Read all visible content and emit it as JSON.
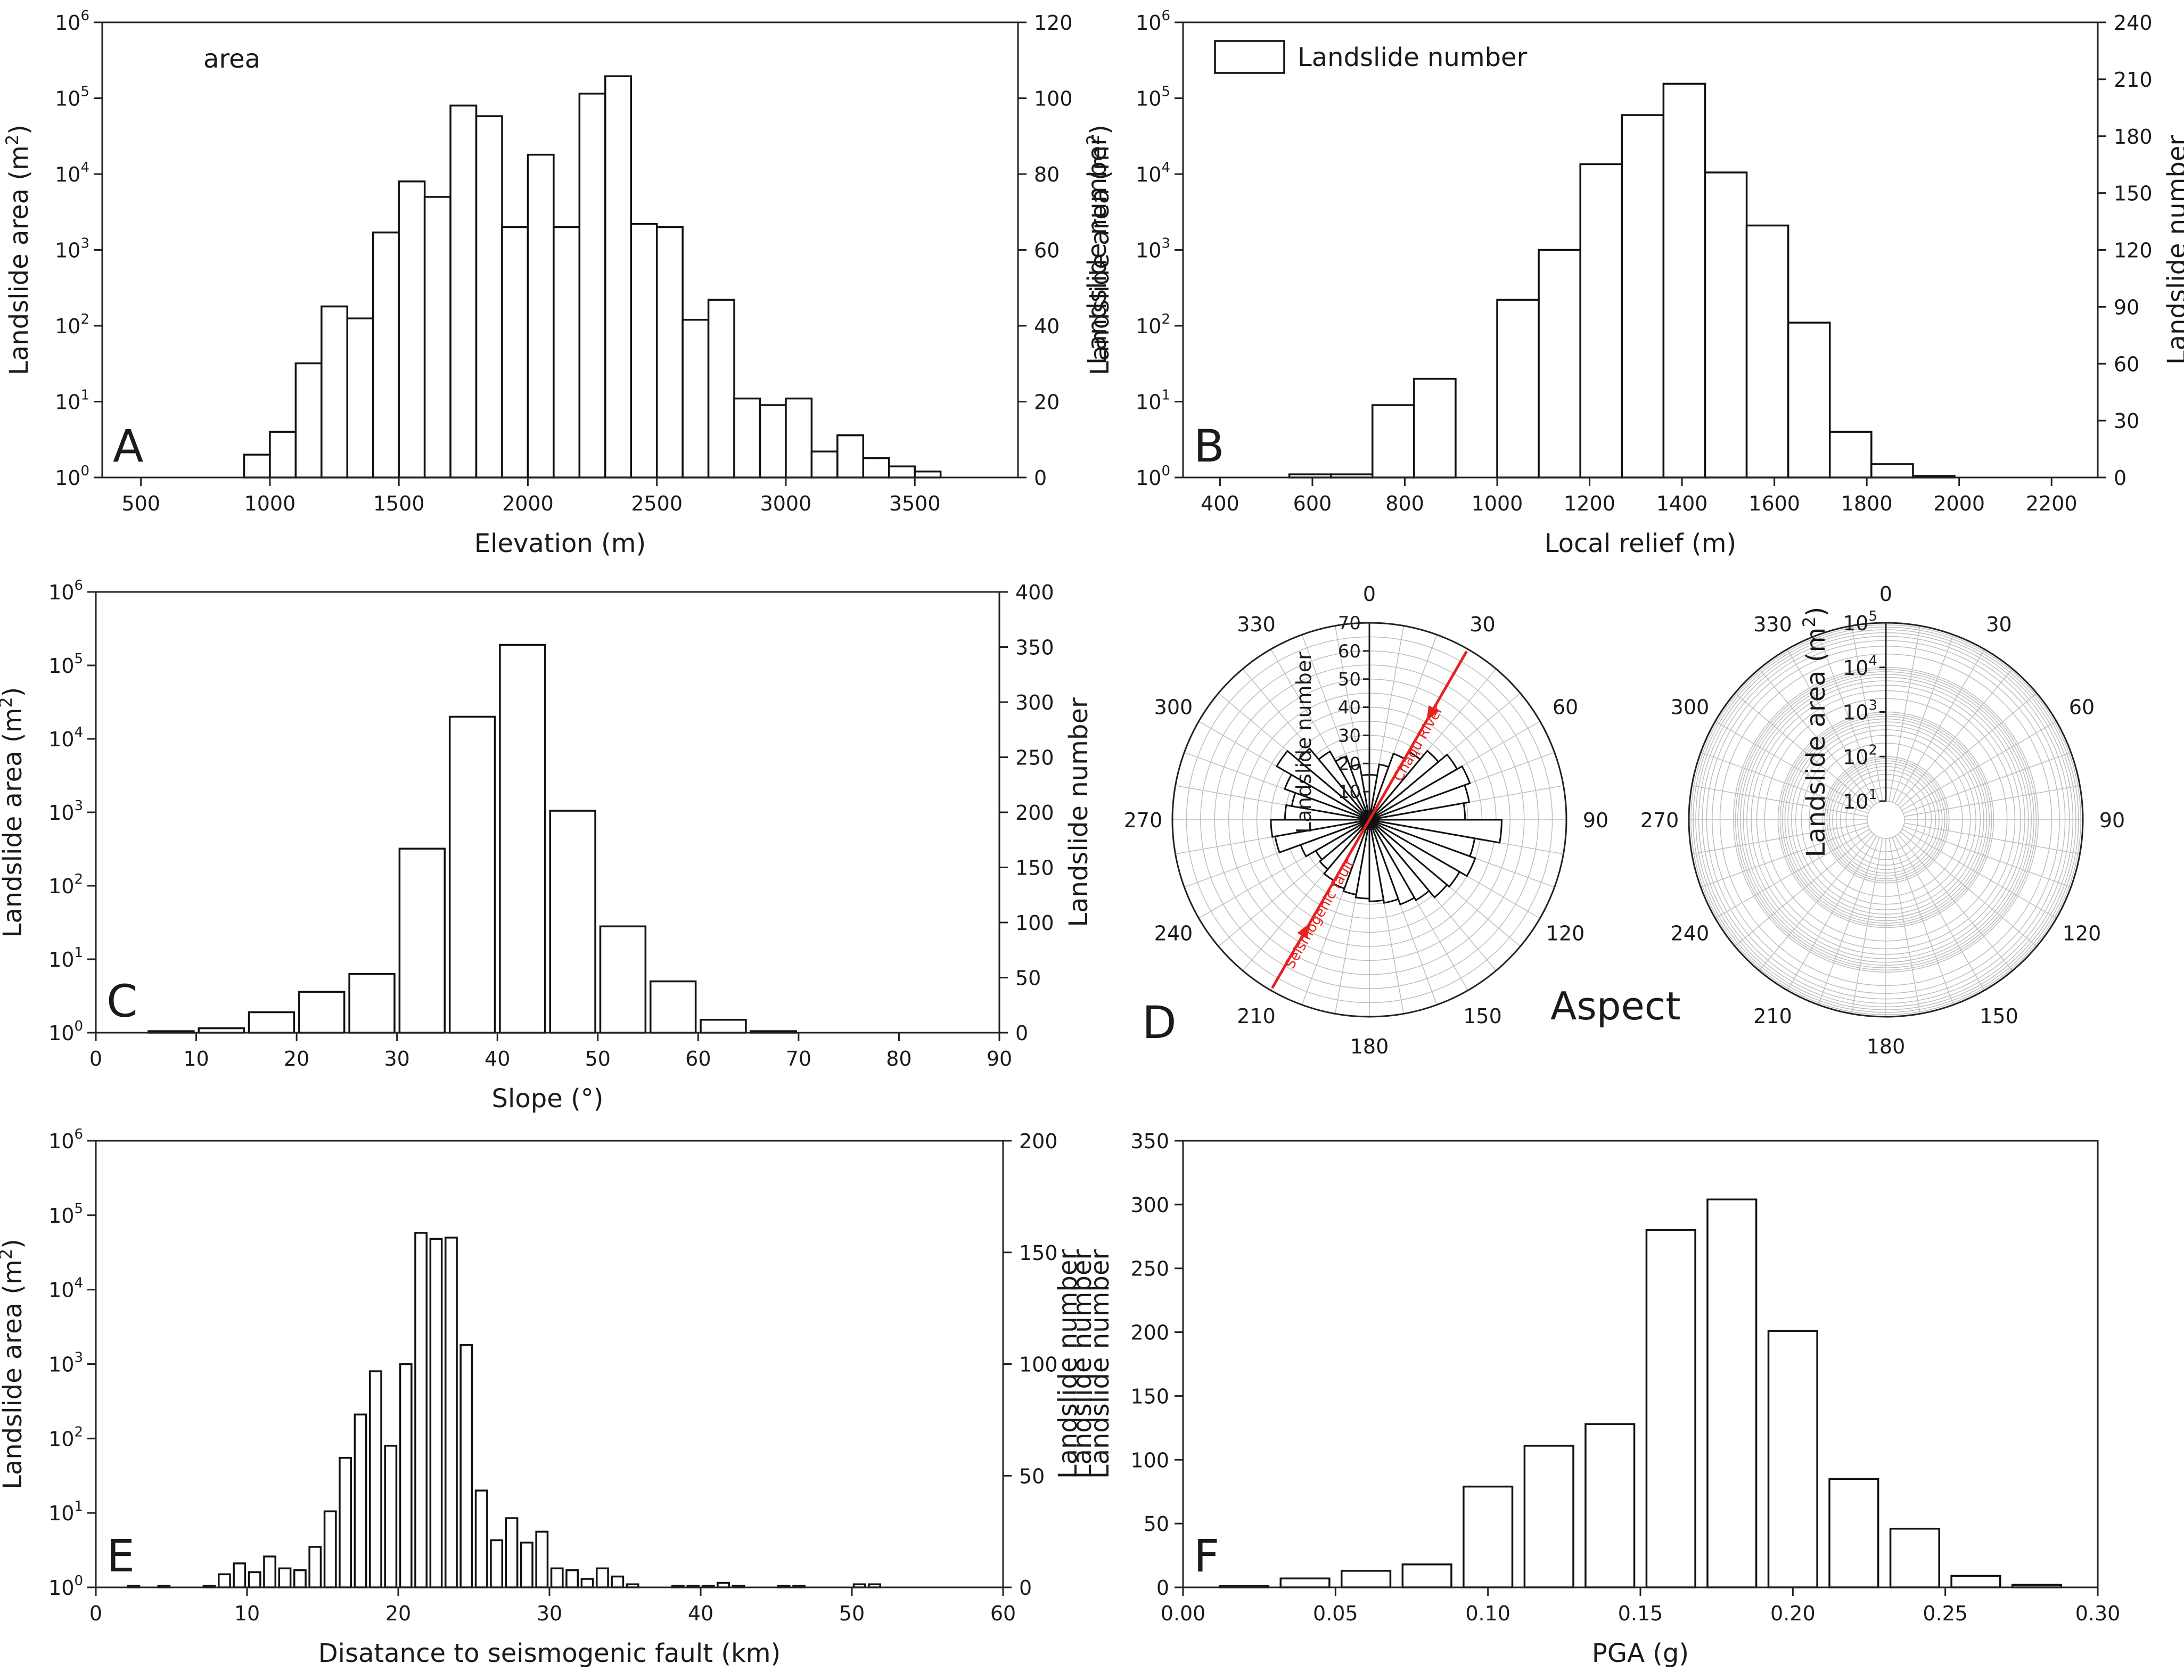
{
  "figure": {
    "title": ""
  },
  "chart_data": [
    {
      "id": "A",
      "type": "bar",
      "panel_letter": "A",
      "inside_label": "area",
      "xlabel": "Elevation (m)",
      "ylabel_left": "Landslide area (m²)",
      "ylabel_right": "Landslide number",
      "xlim": [
        350,
        3900
      ],
      "x_ticks": [
        500,
        1000,
        1500,
        2000,
        2500,
        3000,
        3500
      ],
      "y_left_log_exponents": [
        0,
        1,
        2,
        3,
        4,
        5,
        6
      ],
      "ylim_right": [
        0,
        120
      ],
      "y_right_ticks": [
        0,
        20,
        40,
        60,
        80,
        100,
        120
      ],
      "bin_width": 100,
      "bin_centers": [
        950,
        1050,
        1150,
        1250,
        1350,
        1450,
        1550,
        1650,
        1750,
        1850,
        1950,
        2050,
        2150,
        2250,
        2350,
        2450,
        2550,
        2650,
        2750,
        2850,
        2950,
        3050,
        3150,
        3250,
        3350,
        3450,
        3550
      ],
      "values": [
        2,
        4,
        32,
        180,
        125,
        1700,
        8000,
        5000,
        80000,
        58000,
        2000,
        18000,
        2000,
        115000,
        195000,
        2200,
        2000,
        120,
        220,
        11,
        9,
        11,
        2.2,
        3.6,
        1.8,
        1.4,
        1.2
      ]
    },
    {
      "id": "B",
      "type": "bar",
      "panel_letter": "B",
      "legend": "Landslide number",
      "xlabel": "Local relief (m)",
      "ylabel_left": "Landslide area (m²)",
      "ylabel_right": "Landslide number",
      "xlim": [
        320,
        2300
      ],
      "x_ticks": [
        400,
        600,
        800,
        1000,
        1200,
        1400,
        1600,
        1800,
        2000,
        2200
      ],
      "y_left_log_exponents": [
        0,
        1,
        2,
        3,
        4,
        5,
        6
      ],
      "ylim_right": [
        0,
        240
      ],
      "y_right_ticks": [
        0,
        30,
        60,
        90,
        120,
        150,
        180,
        210,
        240
      ],
      "bin_width": 90,
      "bin_centers": [
        595,
        685,
        775,
        865,
        1045,
        1135,
        1225,
        1315,
        1405,
        1495,
        1585,
        1675,
        1765,
        1855,
        1945
      ],
      "values": [
        1.1,
        1.1,
        9,
        20,
        220,
        1000,
        13500,
        60000,
        155000,
        10500,
        2100,
        110,
        4,
        1.5,
        1.05
      ]
    },
    {
      "id": "C",
      "type": "bar",
      "panel_letter": "C",
      "xlabel": "Slope (°)",
      "ylabel_left": "Landslide area (m²)",
      "ylabel_right": "Landslide number",
      "xlim": [
        0,
        90
      ],
      "x_ticks": [
        0,
        10,
        20,
        30,
        40,
        50,
        60,
        70,
        80,
        90
      ],
      "y_left_log_exponents": [
        0,
        1,
        2,
        3,
        4,
        5,
        6
      ],
      "ylim_right": [
        0,
        400
      ],
      "y_right_ticks": [
        0,
        50,
        100,
        150,
        200,
        250,
        300,
        350,
        400
      ],
      "bin_width": 4.5,
      "bin_centers": [
        7.5,
        12.5,
        17.5,
        22.5,
        27.5,
        32.5,
        37.5,
        42.5,
        47.5,
        52.5,
        57.5,
        62.5,
        67.5
      ],
      "values": [
        1.05,
        1.15,
        1.9,
        3.6,
        6.3,
        320,
        20000,
        190000,
        1050,
        28,
        5,
        1.5,
        1.05
      ]
    },
    {
      "id": "D",
      "type": "rose",
      "panel_letter": "D",
      "label": "Aspect",
      "left": {
        "radial_label": "Landslide number",
        "r_ticks": [
          10,
          20,
          30,
          40,
          50,
          60,
          70
        ],
        "r_max": 70,
        "angle_ticks": [
          0,
          30,
          60,
          90,
          120,
          150,
          180,
          210,
          240,
          270,
          300,
          330
        ],
        "petal_width_deg": 10,
        "petals": [
          {
            "angle": 5,
            "value": 16
          },
          {
            "angle": 15,
            "value": 20
          },
          {
            "angle": 25,
            "value": 25
          },
          {
            "angle": 35,
            "value": 28
          },
          {
            "angle": 45,
            "value": 32
          },
          {
            "angle": 55,
            "value": 36
          },
          {
            "angle": 65,
            "value": 38
          },
          {
            "angle": 75,
            "value": 36
          },
          {
            "angle": 85,
            "value": 34
          },
          {
            "angle": 95,
            "value": 47
          },
          {
            "angle": 105,
            "value": 38
          },
          {
            "angle": 115,
            "value": 40
          },
          {
            "angle": 125,
            "value": 37
          },
          {
            "angle": 135,
            "value": 36
          },
          {
            "angle": 145,
            "value": 33
          },
          {
            "angle": 155,
            "value": 32
          },
          {
            "angle": 165,
            "value": 30
          },
          {
            "angle": 175,
            "value": 29
          },
          {
            "angle": 185,
            "value": 28
          },
          {
            "angle": 195,
            "value": 27
          },
          {
            "angle": 205,
            "value": 26
          },
          {
            "angle": 215,
            "value": 25
          },
          {
            "angle": 225,
            "value": 23
          },
          {
            "angle": 235,
            "value": 22
          },
          {
            "angle": 245,
            "value": 26
          },
          {
            "angle": 255,
            "value": 34
          },
          {
            "angle": 265,
            "value": 35
          },
          {
            "angle": 275,
            "value": 30
          },
          {
            "angle": 285,
            "value": 28
          },
          {
            "angle": 295,
            "value": 32
          },
          {
            "angle": 305,
            "value": 38
          },
          {
            "angle": 315,
            "value": 33
          },
          {
            "angle": 325,
            "value": 28
          },
          {
            "angle": 335,
            "value": 24
          },
          {
            "angle": 345,
            "value": 20
          },
          {
            "angle": 355,
            "value": 16
          }
        ],
        "annotations": [
          {
            "text": "Chaqu River",
            "angle": 30
          },
          {
            "text": "Seismogenic fault",
            "angle": 210
          }
        ]
      },
      "right": {
        "radial_label": "Landslide area (m²)",
        "r_log_exponents": [
          1,
          2,
          3,
          4,
          5
        ],
        "angle_ticks": [
          0,
          30,
          60,
          90,
          120,
          150,
          180,
          210,
          240,
          270,
          300,
          330
        ]
      }
    },
    {
      "id": "E",
      "type": "bar",
      "panel_letter": "E",
      "xlabel": "Disatance to seismogenic fault (km)",
      "ylabel_left": "Landslide area (m²)",
      "ylabel_right": "Landslide number",
      "xlim": [
        0,
        60
      ],
      "x_ticks": [
        0,
        10,
        20,
        30,
        40,
        50,
        60
      ],
      "y_left_log_exponents": [
        0,
        1,
        2,
        3,
        4,
        5,
        6
      ],
      "ylim_right": [
        0,
        200
      ],
      "y_right_ticks": [
        0,
        50,
        100,
        150,
        200
      ],
      "bin_width": 0.75,
      "bin_centers": [
        2.5,
        4.5,
        7.5,
        8.5,
        9.5,
        10.5,
        11.5,
        12.5,
        13.5,
        14.5,
        15.5,
        16.5,
        17.5,
        18.5,
        19.5,
        20.5,
        21.5,
        22.5,
        23.5,
        24.5,
        25.5,
        26.5,
        27.5,
        28.5,
        29.5,
        30.5,
        31.5,
        32.5,
        33.5,
        34.5,
        35.5,
        38.5,
        39.5,
        40.5,
        41.5,
        42.5,
        45.5,
        46.5,
        50.5,
        51.5
      ],
      "values": [
        1.05,
        1.05,
        1.05,
        1.5,
        2.1,
        1.6,
        2.6,
        1.8,
        1.7,
        3.5,
        10.5,
        55,
        210,
        800,
        80,
        1000,
        58000,
        48000,
        50000,
        1800,
        20,
        4.3,
        8.5,
        4,
        5.6,
        1.8,
        1.7,
        1.3,
        1.8,
        1.4,
        1.1,
        1.05,
        1.05,
        1.05,
        1.15,
        1.05,
        1.05,
        1.05,
        1.1,
        1.1
      ]
    },
    {
      "id": "F",
      "type": "bar",
      "panel_letter": "F",
      "xlabel": "PGA (g)",
      "ylabel_right": "Landslide number",
      "ylabel_right2": "Landslide number",
      "xlim": [
        0.0,
        0.3
      ],
      "x_ticks": [
        0.0,
        0.05,
        0.1,
        0.15,
        0.2,
        0.25,
        0.3
      ],
      "x_tick_labels": [
        "0.00",
        "0.05",
        "0.10",
        "0.15",
        "0.20",
        "0.25",
        "0.30"
      ],
      "ylim": [
        0,
        350
      ],
      "y_ticks": [
        0,
        50,
        100,
        150,
        200,
        250,
        300,
        350
      ],
      "bin_width": 0.016,
      "bin_centers": [
        0.02,
        0.04,
        0.06,
        0.08,
        0.1,
        0.12,
        0.14,
        0.16,
        0.18,
        0.2,
        0.22,
        0.24,
        0.26,
        0.28
      ],
      "values": [
        1,
        7,
        13,
        18,
        79,
        111,
        128,
        280,
        304,
        201,
        85,
        46,
        9,
        2
      ]
    }
  ]
}
